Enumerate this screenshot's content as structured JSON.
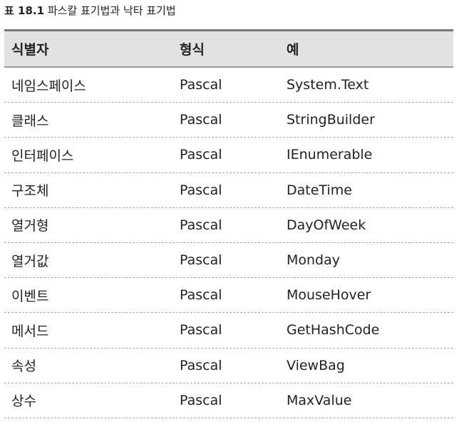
{
  "caption": {
    "label": "표 18.1",
    "title": "파스칼 표기법과 낙타 표기법"
  },
  "table": {
    "headers": [
      "식별자",
      "형식",
      "예"
    ],
    "rows": [
      [
        "네임스페이스",
        "Pascal",
        "System.Text"
      ],
      [
        "클래스",
        "Pascal",
        "StringBuilder"
      ],
      [
        "인터페이스",
        "Pascal",
        "IEnumerable"
      ],
      [
        "구조체",
        "Pascal",
        "DateTime"
      ],
      [
        "열거형",
        "Pascal",
        "DayOfWeek"
      ],
      [
        "열거값",
        "Pascal",
        "Monday"
      ],
      [
        "이벤트",
        "Pascal",
        "MouseHover"
      ],
      [
        "메서드",
        "Pascal",
        "GetHashCode"
      ],
      [
        "속성",
        "Pascal",
        "ViewBag"
      ],
      [
        "상수",
        "Pascal",
        "MaxValue"
      ]
    ]
  }
}
